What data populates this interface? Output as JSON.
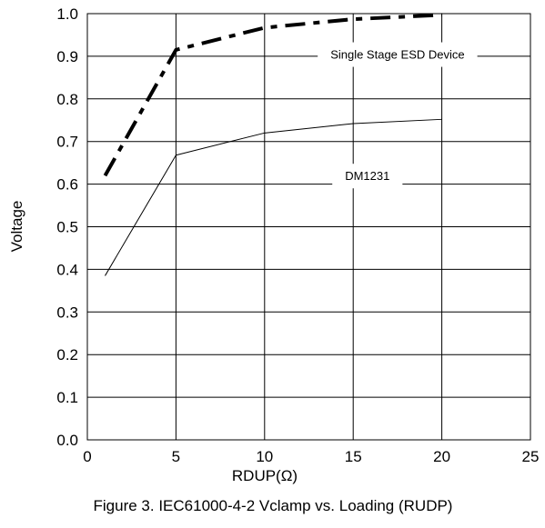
{
  "chart_data": {
    "type": "line",
    "title": "",
    "caption": "Figure 3. IEC61000-4-2 Vclamp vs. Loading (RUDP)",
    "xlabel": "RDUP(Ω)",
    "ylabel": "Voltage",
    "xlim": [
      0,
      25
    ],
    "ylim": [
      0.0,
      1.0
    ],
    "x_ticks": [
      "0",
      "5",
      "10",
      "15",
      "20",
      "25"
    ],
    "y_ticks": [
      "0.0",
      "0.1",
      "0.2",
      "0.3",
      "0.4",
      "0.5",
      "0.6",
      "0.7",
      "0.8",
      "0.9",
      "1.0"
    ],
    "grid": true,
    "series": [
      {
        "name": "Single Stage ESD Device",
        "style": "dash-dot-bold",
        "color": "#000000",
        "x": [
          1,
          5,
          10,
          15,
          20
        ],
        "y": [
          0.62,
          0.915,
          0.967,
          0.987,
          0.997
        ]
      },
      {
        "name": "DM1231",
        "style": "solid-thin",
        "color": "#000000",
        "x": [
          1,
          5,
          10,
          15,
          20
        ],
        "y": [
          0.385,
          0.668,
          0.72,
          0.742,
          0.752
        ]
      }
    ],
    "series_labels": [
      {
        "text": "Single Stage ESD Device",
        "x": 17.5,
        "y": 0.905
      },
      {
        "text": "DM1231",
        "x": 15.8,
        "y": 0.62
      }
    ]
  }
}
